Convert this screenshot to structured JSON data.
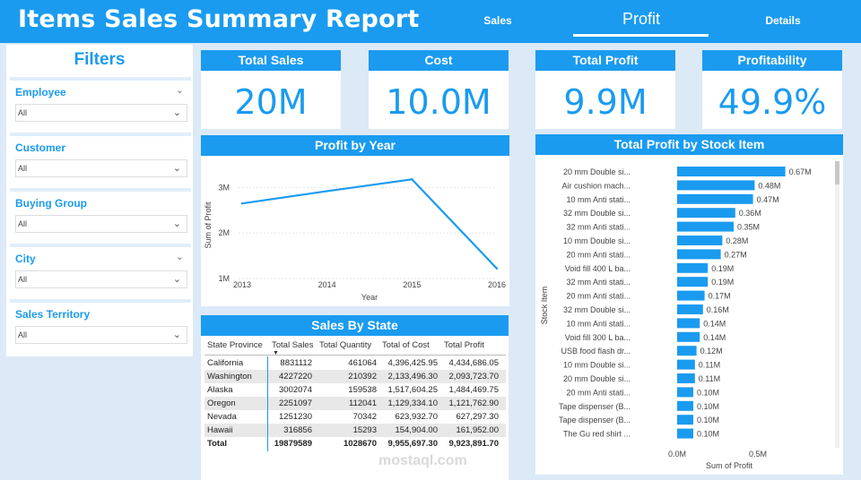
{
  "header": {
    "title": "Items Sales Summary Report",
    "nav": {
      "sales": "Sales",
      "profit": "Profit",
      "details": "Details"
    },
    "brand_color": "#1a9bf0"
  },
  "filters": {
    "title": "Filters",
    "slicers": [
      {
        "label": "Employee",
        "value": "All"
      },
      {
        "label": "Customer",
        "value": "All"
      },
      {
        "label": "Buying Group",
        "value": "All"
      },
      {
        "label": "City",
        "value": "All"
      },
      {
        "label": "Sales Territory",
        "value": "All"
      }
    ]
  },
  "kpis": [
    {
      "label": "Total Sales",
      "value": "20M"
    },
    {
      "label": "Cost",
      "value": "10.0M"
    },
    {
      "label": "Total Profit",
      "value": "9.9M"
    },
    {
      "label": "Profitability",
      "value": "49.9%"
    }
  ],
  "chart_data": [
    {
      "type": "line",
      "title": "Profit by Year",
      "xlabel": "Year",
      "ylabel": "Sum of Profit",
      "x": [
        2013,
        2014,
        2015,
        2016
      ],
      "x_tick_labels": [
        "2013",
        "2014",
        "2015",
        "2016"
      ],
      "y_tick_labels": [
        "1M",
        "2M",
        "3M"
      ],
      "values": [
        2.65,
        2.92,
        3.18,
        1.22
      ],
      "ylim": [
        1,
        3.5
      ],
      "grid": true,
      "color": "#1a9bf0"
    },
    {
      "type": "bar",
      "orientation": "horizontal",
      "title": "Total Profit by Stock Item",
      "xlabel": "Sum of Profit",
      "ylabel": "Stock Item",
      "x_tick_labels": [
        "0.0M",
        "0.5M"
      ],
      "xlim": [
        0,
        0.7
      ],
      "categories": [
        "20 mm Double si...",
        "Air cushion mach...",
        "10 mm Anti stati...",
        "32 mm Double si...",
        "32 mm Anti stati...",
        "10 mm Double si...",
        "20 mm Anti stati...",
        "Void fill 400 L ba...",
        "32 mm Anti stati...",
        "20 mm Anti stati...",
        "32 mm Double si...",
        "10 mm Anti stati...",
        "Void fill 300 L ba...",
        "USB food flash dr...",
        "10 mm Double si...",
        "20 mm Double si...",
        "20 mm Anti stati...",
        "Tape dispenser (B...",
        "Tape dispenser (B...",
        "The Gu red shirt ..."
      ],
      "values": [
        0.67,
        0.48,
        0.47,
        0.36,
        0.35,
        0.28,
        0.27,
        0.19,
        0.19,
        0.17,
        0.16,
        0.14,
        0.14,
        0.12,
        0.11,
        0.11,
        0.1,
        0.1,
        0.1,
        0.1
      ],
      "value_labels": [
        "0.67M",
        "0.48M",
        "0.47M",
        "0.36M",
        "0.35M",
        "0.28M",
        "0.27M",
        "0.19M",
        "0.19M",
        "0.17M",
        "0.16M",
        "0.14M",
        "0.14M",
        "0.12M",
        "0.11M",
        "0.11M",
        "0.10M",
        "0.10M",
        "0.10M",
        "0.10M"
      ],
      "color": "#1a9bf0"
    },
    {
      "type": "table",
      "title": "Sales By State",
      "columns": [
        "State Province",
        "Total Sales",
        "Total Quantity",
        "Total of Cost",
        "Total Profit"
      ],
      "rows": [
        [
          "California",
          "8831112",
          "461064",
          "4,396,425.95",
          "4,434,686.05"
        ],
        [
          "Washington",
          "4227220",
          "210392",
          "2,133,496.30",
          "2,093,723.70"
        ],
        [
          "Alaska",
          "3002074",
          "159538",
          "1,517,604.25",
          "1,484,469.75"
        ],
        [
          "Oregon",
          "2251097",
          "112041",
          "1,129,334.10",
          "1,121,762.90"
        ],
        [
          "Nevada",
          "1251230",
          "70342",
          "623,932.70",
          "627,297.30"
        ],
        [
          "Hawaii",
          "316856",
          "15293",
          "154,904.00",
          "161,952.00"
        ]
      ],
      "total": [
        "Total",
        "19879589",
        "1028670",
        "9,955,697.30",
        "9,923,891.70"
      ]
    }
  ],
  "watermark": "mostaql.com"
}
